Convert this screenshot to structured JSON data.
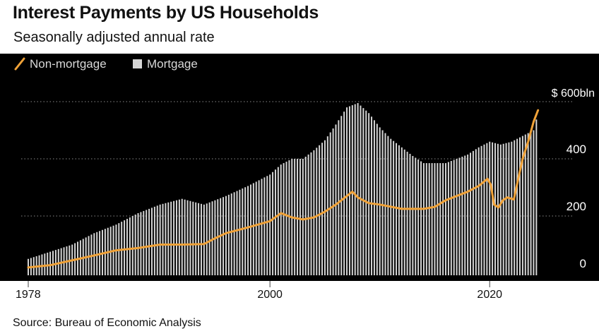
{
  "header": {
    "title": "Interest Payments by US Households",
    "subtitle": "Seasonally adjusted annual rate"
  },
  "footer": {
    "source": "Source: Bureau of Economic Analysis"
  },
  "colors": {
    "background": "#000000",
    "non_mortgage_line": "#f0a238",
    "mortgage_bars": "#d6d6d6",
    "grid": "#8a8a8a",
    "tick_text": "#ffffff",
    "axis_text": "#111111",
    "legend_text": "#d8d8d8"
  },
  "chart_data": {
    "type": "bar",
    "title": "Interest Payments by US Households",
    "subtitle": "Seasonally adjusted annual rate",
    "xlabel": "",
    "ylabel": "",
    "y_unit_label": "$ 600bln",
    "xlim": [
      1978,
      2025
    ],
    "ylim": [
      -10,
      660
    ],
    "yticks": [
      0,
      200,
      400,
      600
    ],
    "ytick_labels": [
      "0",
      "200",
      "400",
      "$ 600bln"
    ],
    "xticks": [
      1978,
      2000,
      2020
    ],
    "xtick_labels": [
      "1978",
      "2000",
      "2020"
    ],
    "grid": true,
    "legend_position": "top-left",
    "series": [
      {
        "name": "Non-mortgage",
        "kind": "line",
        "x": [
          1978,
          1980,
          1982,
          1984,
          1986,
          1988,
          1990,
          1992,
          1994,
          1995,
          1996,
          1998,
          2000,
          2001,
          2002,
          2003,
          2004,
          2005,
          2006,
          2007,
          2007.5,
          2008,
          2009,
          2010,
          2012,
          2014,
          2015,
          2016,
          2018,
          2019,
          2019.8,
          2020.1,
          2020.4,
          2020.8,
          2021.2,
          2021.6,
          2022.2,
          2022.6,
          2023.0,
          2023.5,
          2024.0,
          2024.4
        ],
        "values": [
          20,
          28,
          45,
          62,
          80,
          88,
          100,
          100,
          102,
          122,
          140,
          160,
          182,
          210,
          195,
          188,
          195,
          215,
          240,
          270,
          285,
          265,
          245,
          240,
          225,
          225,
          232,
          255,
          285,
          305,
          330,
          310,
          240,
          230,
          255,
          265,
          258,
          330,
          400,
          460,
          530,
          570
        ]
      },
      {
        "name": "Mortgage",
        "kind": "bar",
        "x": [
          1978,
          1980,
          1982,
          1984,
          1986,
          1988,
          1990,
          1992,
          1994,
          1996,
          1998,
          2000,
          2001,
          2002,
          2003,
          2004,
          2005,
          2006,
          2007,
          2008,
          2009,
          2010,
          2011,
          2012,
          2013,
          2014,
          2016,
          2018,
          2019,
          2020,
          2021,
          2022,
          2023,
          2024,
          2024.4
        ],
        "values": [
          50,
          75,
          100,
          140,
          170,
          210,
          240,
          260,
          240,
          270,
          305,
          345,
          380,
          400,
          400,
          430,
          465,
          520,
          580,
          595,
          560,
          510,
          470,
          440,
          410,
          385,
          385,
          415,
          440,
          460,
          450,
          460,
          480,
          500,
          560
        ]
      }
    ]
  }
}
